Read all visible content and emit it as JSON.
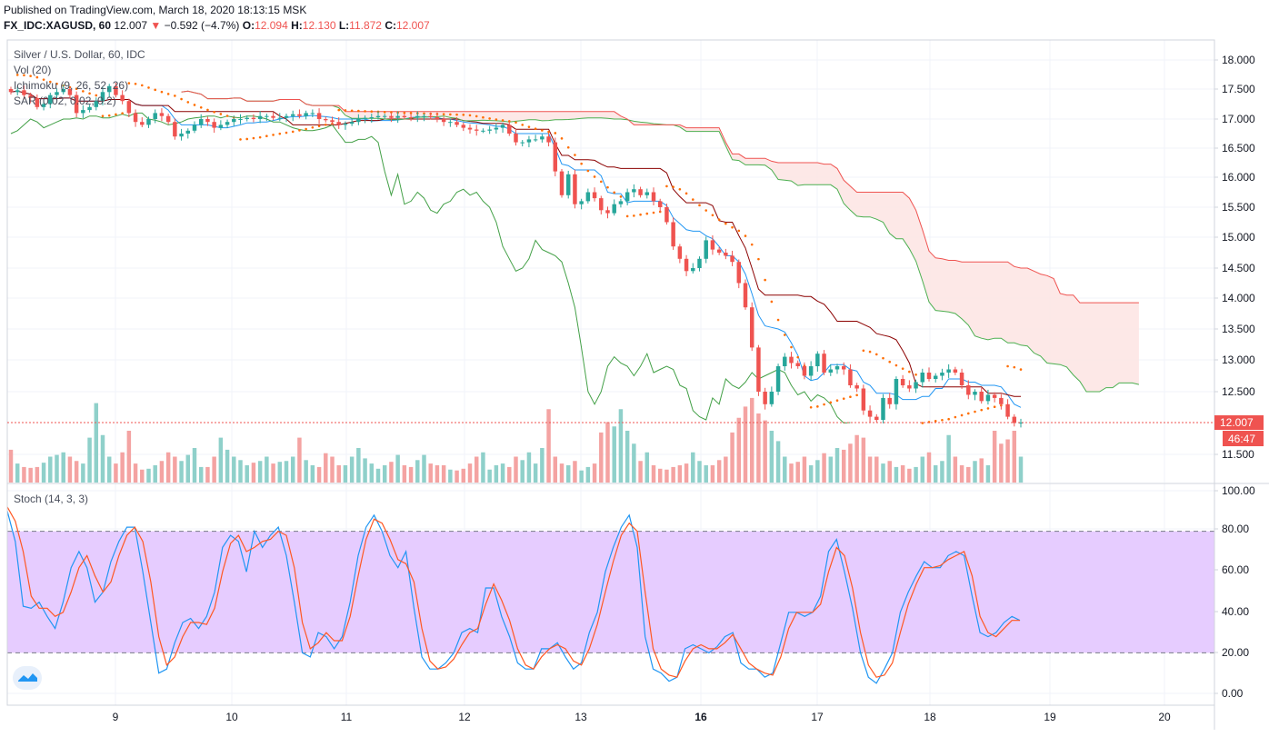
{
  "header": {
    "published": "Published on TradingView.com, March 18, 2020 18:13:15 MSK",
    "symbol": "FX_IDC:XAGUSD, 60",
    "last": "12.007",
    "arrow": "▼",
    "change": "−0.592 (−4.7%)",
    "o_label": "O:",
    "o": "12.094",
    "h_label": "H:",
    "h": "12.130",
    "l_label": "L:",
    "l": "11.872",
    "c_label": "C:",
    "c": "12.007"
  },
  "legend": {
    "main": "Silver / U.S. Dollar, 60, IDC",
    "vol": "Vol (20)",
    "ichimoku": "Ichimoku (9, 26, 52, 26)",
    "sar": "SAR (0.02, 0.02, 0.2)",
    "stoch": "Stoch (14, 3, 3)"
  },
  "colors": {
    "up": "#26a69a",
    "down": "#ef5350",
    "vol_up": "#8fd0ca",
    "vol_down": "#f4a3a2",
    "tenkan": "#2196f3",
    "kijun": "#8b0000",
    "lagging": "#43a047",
    "span_a": "#4caf50",
    "span_b": "#ef5350",
    "cloud": "#fde4e3",
    "sar": "#ff6d00",
    "stoch_k": "#2196f3",
    "stoch_d": "#ff5722",
    "stoch_band": "#e6ccff"
  },
  "price_label": "12.007",
  "countdown_label": "46:47",
  "chart_data": [
    {
      "type": "candlestick",
      "title": "Silver / U.S. Dollar, 60, IDC",
      "x_ticks": [
        "9",
        "10",
        "11",
        "12",
        "13",
        "16",
        "17",
        "18",
        "19",
        "20"
      ],
      "y_ticks": [
        "18.000",
        "17.500",
        "17.000",
        "16.500",
        "16.000",
        "15.500",
        "15.000",
        "14.500",
        "14.000",
        "13.500",
        "13.000",
        "12.500",
        "11.500"
      ],
      "ylim": [
        11.2,
        18.3
      ],
      "last_price": 12.007,
      "candles_close": [
        17.45,
        17.48,
        17.4,
        17.35,
        17.2,
        17.25,
        17.4,
        17.45,
        17.5,
        17.4,
        17.1,
        17.15,
        17.2,
        17.3,
        17.45,
        17.55,
        17.4,
        17.3,
        17.1,
        16.95,
        16.9,
        17.0,
        17.1,
        17.05,
        16.95,
        16.7,
        16.75,
        16.8,
        16.9,
        17.0,
        16.95,
        16.85,
        16.9,
        16.95,
        17.0,
        17.0,
        17.02,
        17.0,
        17.05,
        17.05,
        17.02,
        17.02,
        17.05,
        17.08,
        17.05,
        17.1,
        17.1,
        17.0,
        16.98,
        16.95,
        16.9,
        16.92,
        16.95,
        17.0,
        17.02,
        17.03,
        17.05,
        17.05,
        17.02,
        17.05,
        17.03,
        17.02,
        17.05,
        17.05,
        17.03,
        17.0,
        16.95,
        16.95,
        16.9,
        16.85,
        16.82,
        16.8,
        16.8,
        16.82,
        16.85,
        16.9,
        16.75,
        16.6,
        16.6,
        16.65,
        16.65,
        16.7,
        16.6,
        16.1,
        15.7,
        16.05,
        15.55,
        15.6,
        15.75,
        15.65,
        15.45,
        15.4,
        15.55,
        15.6,
        15.75,
        15.8,
        15.7,
        15.75,
        15.6,
        15.5,
        15.25,
        14.85,
        14.65,
        14.45,
        14.5,
        14.65,
        14.95,
        14.8,
        14.75,
        14.7,
        14.6,
        14.25,
        13.85,
        13.2,
        12.5,
        12.3,
        12.5,
        12.9,
        13.05,
        12.95,
        12.9,
        12.75,
        12.9,
        13.1,
        12.8,
        12.85,
        12.9,
        12.85,
        12.6,
        12.55,
        12.2,
        12.1,
        12.05,
        12.4,
        12.3,
        12.7,
        12.6,
        12.55,
        12.65,
        12.8,
        12.7,
        12.75,
        12.8,
        12.85,
        12.8,
        12.6,
        12.45,
        12.5,
        12.35,
        12.45,
        12.4,
        12.3,
        12.1,
        12.0,
        12.007
      ],
      "volume_relative": [
        0.38,
        0.22,
        0.18,
        0.17,
        0.18,
        0.23,
        0.3,
        0.32,
        0.35,
        0.3,
        0.25,
        0.22,
        0.52,
        0.92,
        0.55,
        0.3,
        0.22,
        0.35,
        0.6,
        0.22,
        0.15,
        0.16,
        0.2,
        0.25,
        0.35,
        0.3,
        0.25,
        0.32,
        0.4,
        0.18,
        0.18,
        0.3,
        0.52,
        0.38,
        0.3,
        0.26,
        0.2,
        0.23,
        0.25,
        0.3,
        0.22,
        0.24,
        0.25,
        0.3,
        0.52,
        0.26,
        0.2,
        0.18,
        0.34,
        0.3,
        0.2,
        0.2,
        0.3,
        0.4,
        0.28,
        0.22,
        0.16,
        0.2,
        0.24,
        0.32,
        0.2,
        0.18,
        0.26,
        0.32,
        0.22,
        0.2,
        0.2,
        0.15,
        0.14,
        0.16,
        0.22,
        0.3,
        0.35,
        0.15,
        0.2,
        0.22,
        0.18,
        0.3,
        0.26,
        0.35,
        0.22,
        0.4,
        0.85,
        0.3,
        0.22,
        0.2,
        0.25,
        0.14,
        0.18,
        0.22,
        0.58,
        0.7,
        0.65,
        0.85,
        0.6,
        0.45,
        0.25,
        0.35,
        0.2,
        0.16,
        0.15,
        0.18,
        0.2,
        0.22,
        0.35,
        0.25,
        0.2,
        0.2,
        0.26,
        0.3,
        0.58,
        0.75,
        0.88,
        0.98,
        0.8,
        0.72,
        0.6,
        0.48,
        0.3,
        0.22,
        0.24,
        0.3,
        0.2,
        0.26,
        0.34,
        0.3,
        0.4,
        0.38,
        0.45,
        0.55,
        0.52,
        0.3,
        0.3,
        0.22,
        0.25,
        0.18,
        0.2,
        0.16,
        0.18,
        0.3,
        0.35,
        0.2,
        0.25,
        0.55,
        0.3,
        0.2,
        0.18,
        0.25,
        0.28,
        0.2,
        0.6,
        0.45,
        0.5,
        0.6,
        0.3,
        0.35,
        0.2
      ]
    },
    {
      "type": "line",
      "title": "Stoch (14, 3, 3)",
      "x_ticks": [
        "9",
        "10",
        "11",
        "12",
        "13",
        "16",
        "17",
        "18",
        "19",
        "20"
      ],
      "y_ticks": [
        "100.00",
        "80.00",
        "60.00",
        "40.00",
        "20.00",
        "0.00"
      ],
      "ylim": [
        -4,
        100
      ],
      "band": [
        20,
        80
      ],
      "series": [
        {
          "values": [
            90,
            75,
            43,
            42,
            45,
            38,
            32,
            45,
            62,
            70,
            62,
            45,
            50,
            65,
            75,
            82,
            82,
            60,
            35,
            10,
            12,
            25,
            35,
            37,
            32,
            38,
            50,
            72,
            78,
            75,
            60,
            80,
            72,
            78,
            82,
            68,
            45,
            20,
            18,
            30,
            28,
            22,
            28,
            45,
            68,
            82,
            88,
            80,
            68,
            62,
            70,
            42,
            18,
            12,
            12,
            15,
            20,
            30,
            32,
            30,
            52,
            52,
            38,
            28,
            15,
            12,
            12,
            22,
            22,
            25,
            18,
            12,
            15,
            30,
            40,
            60,
            72,
            82,
            88,
            72,
            28,
            12,
            10,
            6,
            8,
            22,
            24,
            22,
            20,
            23,
            28,
            30,
            15,
            12,
            12,
            8,
            10,
            25,
            40,
            40,
            38,
            40,
            48,
            70,
            76,
            60,
            42,
            20,
            8,
            5,
            12,
            20,
            40,
            50,
            58,
            65,
            62,
            62,
            68,
            70,
            68,
            48,
            30,
            28,
            30,
            35,
            38,
            36
          ]
        },
        {
          "values": [
            92,
            85,
            70,
            48,
            42,
            42,
            38,
            40,
            50,
            62,
            68,
            58,
            50,
            55,
            68,
            78,
            82,
            75,
            55,
            28,
            14,
            18,
            28,
            35,
            35,
            34,
            42,
            60,
            74,
            78,
            70,
            72,
            75,
            76,
            80,
            78,
            62,
            35,
            22,
            25,
            30,
            26,
            26,
            38,
            58,
            76,
            86,
            84,
            76,
            66,
            64,
            55,
            32,
            16,
            12,
            13,
            17,
            24,
            30,
            32,
            44,
            54,
            46,
            36,
            22,
            14,
            12,
            18,
            22,
            24,
            22,
            16,
            14,
            22,
            34,
            50,
            65,
            78,
            84,
            80,
            50,
            22,
            12,
            9,
            8,
            16,
            22,
            24,
            22,
            22,
            25,
            29,
            22,
            15,
            12,
            10,
            9,
            18,
            32,
            40,
            40,
            40,
            44,
            60,
            72,
            68,
            52,
            30,
            14,
            8,
            9,
            15,
            30,
            44,
            54,
            62,
            62,
            63,
            66,
            68,
            70,
            58,
            38,
            30,
            28,
            32,
            36,
            36
          ]
        }
      ]
    }
  ]
}
